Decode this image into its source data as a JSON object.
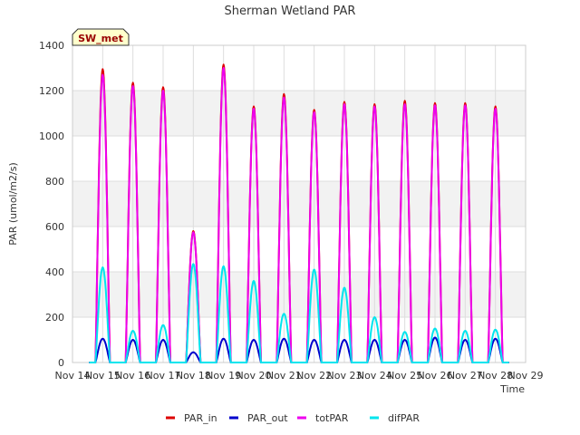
{
  "chart_data": {
    "type": "line",
    "title": "Sherman Wetland PAR",
    "station_label": "SW_met",
    "xlabel": "Time",
    "ylabel": "PAR (umol/m2/s)",
    "ylim": [
      0,
      1400
    ],
    "yticks": [
      0,
      200,
      400,
      600,
      800,
      1000,
      1200,
      1400
    ],
    "xlim": [
      14,
      29
    ],
    "xticks": [
      {
        "x": 14,
        "label": "Nov 14"
      },
      {
        "x": 15,
        "label": "Nov 15"
      },
      {
        "x": 16,
        "label": "Nov 16"
      },
      {
        "x": 17,
        "label": "Nov 17"
      },
      {
        "x": 18,
        "label": "Nov 18"
      },
      {
        "x": 19,
        "label": "Nov 19"
      },
      {
        "x": 20,
        "label": "Nov 20"
      },
      {
        "x": 21,
        "label": "Nov 21"
      },
      {
        "x": 22,
        "label": "Nov 22"
      },
      {
        "x": 23,
        "label": "Nov 23"
      },
      {
        "x": 24,
        "label": "Nov 24"
      },
      {
        "x": 25,
        "label": "Nov 25"
      },
      {
        "x": 26,
        "label": "Nov 26"
      },
      {
        "x": 27,
        "label": "Nov 27"
      },
      {
        "x": 28,
        "label": "Nov 28"
      },
      {
        "x": 29,
        "label": "Nov 29"
      }
    ],
    "grid": true,
    "background_bands": true,
    "legend_position": "bottom",
    "days": [
      15,
      16,
      17,
      18,
      19,
      20,
      21,
      22,
      23,
      24,
      25,
      26,
      27,
      28
    ],
    "series": [
      {
        "name": "PAR_in",
        "color": "#dd0000",
        "daily_peak": [
          1295,
          1235,
          1215,
          580,
          1315,
          1130,
          1185,
          1115,
          1150,
          1140,
          1155,
          1145,
          1145,
          1130
        ]
      },
      {
        "name": "PAR_out",
        "color": "#0000cc",
        "daily_peak": [
          105,
          100,
          100,
          45,
          105,
          100,
          105,
          100,
          100,
          100,
          100,
          110,
          100,
          105
        ]
      },
      {
        "name": "totPAR",
        "color": "#ee00ee",
        "daily_peak": [
          1270,
          1220,
          1200,
          575,
          1300,
          1120,
          1170,
          1105,
          1140,
          1130,
          1140,
          1135,
          1135,
          1120
        ]
      },
      {
        "name": "difPAR",
        "color": "#00e5ee",
        "daily_peak": [
          420,
          140,
          165,
          435,
          425,
          360,
          215,
          410,
          330,
          200,
          135,
          150,
          140,
          145
        ]
      }
    ]
  }
}
